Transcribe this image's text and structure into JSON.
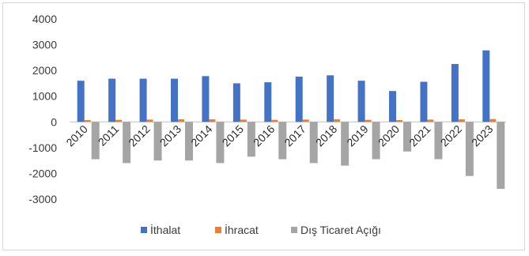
{
  "chart_data": {
    "type": "bar",
    "title": "",
    "xlabel": "",
    "ylabel": "",
    "categories": [
      "2010",
      "2011",
      "2012",
      "2013",
      "2014",
      "2015",
      "2016",
      "2017",
      "2018",
      "2019",
      "2020",
      "2021",
      "2022",
      "2023"
    ],
    "series": [
      {
        "name": "İthalat",
        "color": "#4472C4",
        "values": [
          1600,
          1680,
          1680,
          1680,
          1780,
          1500,
          1540,
          1760,
          1810,
          1600,
          1200,
          1560,
          2250,
          2780
        ]
      },
      {
        "name": "İhracat",
        "color": "#ED7D31",
        "values": [
          70,
          80,
          90,
          100,
          100,
          90,
          80,
          90,
          100,
          80,
          70,
          90,
          100,
          110
        ]
      },
      {
        "name": "Dış Ticaret Açığı",
        "color": "#A5A5A5",
        "values": [
          -1450,
          -1600,
          -1500,
          -1500,
          -1600,
          -1350,
          -1450,
          -1600,
          -1700,
          -1450,
          -1150,
          -1450,
          -2100,
          -2600
        ]
      }
    ],
    "ylim": [
      -3000,
      4000
    ],
    "yticks": [
      "4000",
      "3000",
      "2000",
      "1000",
      "0",
      "-1000",
      "-2000",
      "-3000"
    ],
    "grid": false,
    "legend": "bottom"
  }
}
